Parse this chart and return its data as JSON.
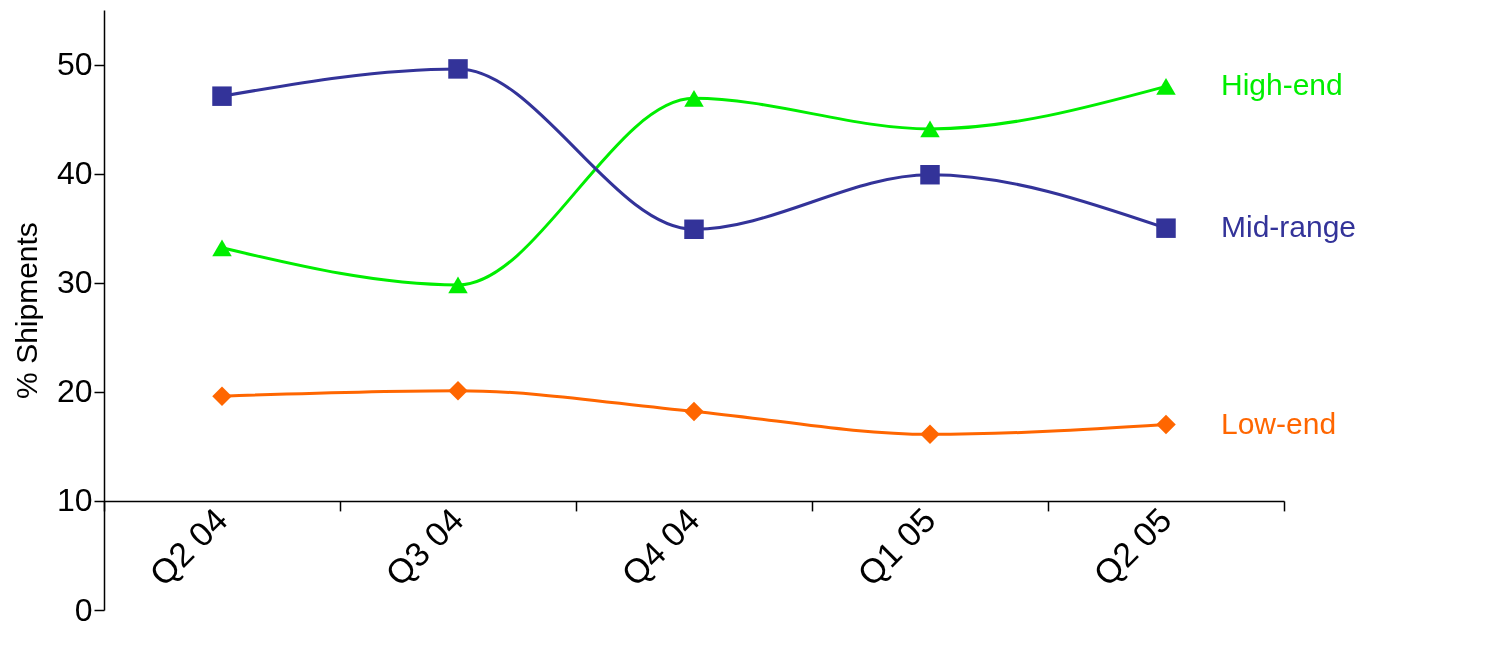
{
  "chart_data": {
    "type": "line",
    "ylabel": "% Shipments",
    "categories": [
      "Q2 04",
      "Q3 04",
      "Q4 04",
      "Q1 05",
      "Q2 05"
    ],
    "ylim": [
      0,
      55
    ],
    "yticks": [
      0,
      10,
      20,
      30,
      40,
      50
    ],
    "grid": false,
    "legend": false,
    "series": [
      {
        "name": "High-end",
        "color": "#00ee00",
        "marker": "triangle",
        "values": [
          33.2,
          29.8,
          46.9,
          44.1,
          48.0
        ]
      },
      {
        "name": "Mid-range",
        "color": "#333399",
        "marker": "square",
        "values": [
          47.1,
          49.6,
          34.9,
          39.9,
          35.0
        ]
      },
      {
        "name": "Low-end",
        "color": "#ff6600",
        "marker": "diamond",
        "values": [
          19.6,
          20.1,
          18.2,
          16.1,
          17.0
        ]
      }
    ]
  }
}
